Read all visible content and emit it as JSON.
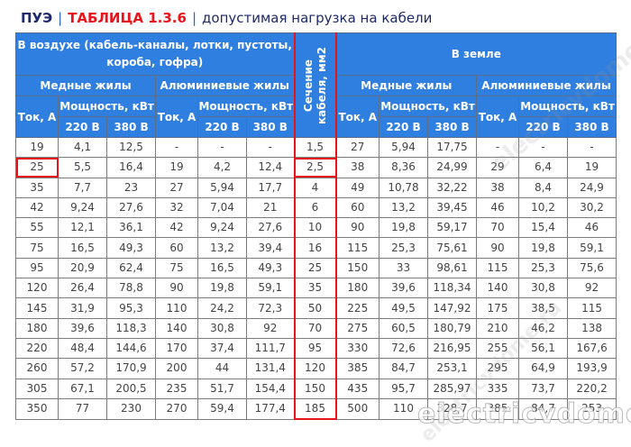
{
  "title": {
    "pue": "ПУЭ",
    "separator": "|",
    "table_ref": "ТАБЛИЦА 1.3.6",
    "description": "допустимая нагрузка на кабели"
  },
  "colors": {
    "header_bg": "#2f7fe0",
    "accent_red": "#e8141b",
    "title_dark": "#1f2a6b",
    "cell_text": "#444444"
  },
  "headers": {
    "air": "В воздухе (кабель-каналы, лотки, пустоты, короба, гофра)",
    "ground": "В земле",
    "cross_section": "Сечение кабеля, мм2",
    "copper": "Медные жилы",
    "aluminum": "Алюминиевые жилы",
    "current": "Ток, А",
    "power": "Мощность, кВт",
    "v220": "220 В",
    "v380": "380 В"
  },
  "columns": [
    "air_cu_current",
    "air_cu_220",
    "air_cu_380",
    "air_al_current",
    "air_al_220",
    "air_al_380",
    "cross_section",
    "ground_cu_current",
    "ground_cu_220",
    "ground_cu_380",
    "ground_al_current",
    "ground_al_220",
    "ground_al_380"
  ],
  "rows": [
    [
      "19",
      "4,1",
      "12,5",
      "-",
      "-",
      "-",
      "1,5",
      "27",
      "5,94",
      "17,75",
      "-",
      "-",
      "-"
    ],
    [
      "25",
      "5,5",
      "16,4",
      "19",
      "4,2",
      "12,4",
      "2,5",
      "38",
      "8,36",
      "24,99",
      "29",
      "6,4",
      "19"
    ],
    [
      "35",
      "7,7",
      "23",
      "27",
      "5,94",
      "17,7",
      "4",
      "49",
      "10,78",
      "32,22",
      "38",
      "8,4",
      "24,9"
    ],
    [
      "42",
      "9,24",
      "27,6",
      "32",
      "7,04",
      "21",
      "6",
      "60",
      "13,2",
      "39,45",
      "46",
      "10,2",
      "30,2"
    ],
    [
      "55",
      "12,1",
      "36,1",
      "42",
      "9,24",
      "27,6",
      "10",
      "90",
      "19,8",
      "59,17",
      "70",
      "15,4",
      "46"
    ],
    [
      "75",
      "16,5",
      "49,3",
      "60",
      "13,2",
      "39,4",
      "16",
      "115",
      "25,3",
      "75,61",
      "90",
      "19,8",
      "59,1"
    ],
    [
      "95",
      "20,9",
      "62,4",
      "75",
      "16,5",
      "49,3",
      "25",
      "150",
      "33",
      "98,61",
      "115",
      "25,3",
      "75,6"
    ],
    [
      "120",
      "26,4",
      "78,8",
      "90",
      "19,8",
      "59,1",
      "35",
      "180",
      "39,6",
      "118,34",
      "140",
      "30,8",
      "92"
    ],
    [
      "145",
      "31,9",
      "95,3",
      "110",
      "24,2",
      "72,3",
      "50",
      "225",
      "49,5",
      "147,92",
      "175",
      "38,5",
      "115"
    ],
    [
      "180",
      "39,6",
      "118,3",
      "140",
      "30,8",
      "92",
      "70",
      "275",
      "60,5",
      "180,79",
      "210",
      "46,2",
      "138"
    ],
    [
      "220",
      "48,4",
      "144,6",
      "170",
      "37,4",
      "111,7",
      "95",
      "330",
      "72,6",
      "216,95",
      "255",
      "56,1",
      "167,6"
    ],
    [
      "260",
      "57,2",
      "170,9",
      "200",
      "44",
      "131,4",
      "120",
      "385",
      "84,7",
      "253,1",
      "295",
      "64,9",
      "193,9"
    ],
    [
      "305",
      "67,1",
      "200,5",
      "235",
      "51,7",
      "154,4",
      "150",
      "435",
      "95,7",
      "285,97",
      "335",
      "73,7",
      "220,2"
    ],
    [
      "350",
      "77",
      "230",
      "270",
      "59,4",
      "177,4",
      "185",
      "500",
      "110",
      "328,7",
      "385",
      "84,7",
      "253"
    ]
  ],
  "highlight": {
    "row_index": 1,
    "cells": [
      "air_cu_current",
      "cross_section"
    ]
  },
  "watermark": "electricvdome.ru"
}
